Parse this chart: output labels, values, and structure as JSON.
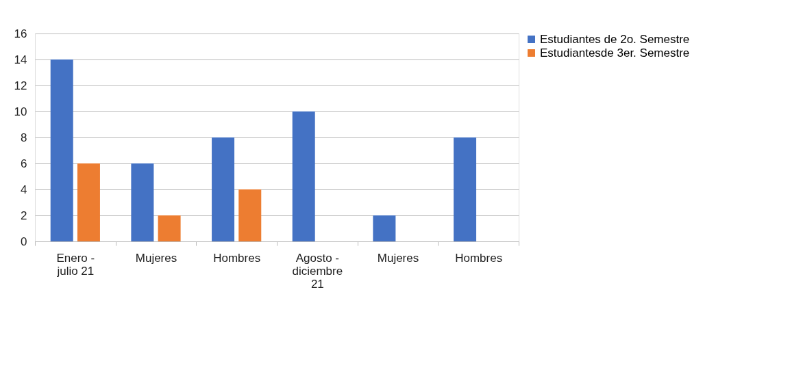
{
  "chart_data": {
    "type": "bar",
    "categories": [
      "Enero - julio 21",
      "Mujeres",
      "Hombres",
      "Agosto - diciembre 21",
      "Mujeres",
      "Hombres"
    ],
    "series": [
      {
        "name": "Estudiantes de 2o. Semestre",
        "color": "#4472c4",
        "values": [
          14,
          6,
          8,
          10,
          2,
          8
        ]
      },
      {
        "name": "Estudiantesde 3er. Semestre",
        "color": "#ed7d31",
        "values": [
          6,
          2,
          4,
          0,
          0,
          0
        ]
      }
    ],
    "ylim": [
      0,
      16
    ],
    "yticks": [
      0,
      2,
      4,
      6,
      8,
      10,
      12,
      14,
      16
    ],
    "grid": "y",
    "legend": "right"
  }
}
